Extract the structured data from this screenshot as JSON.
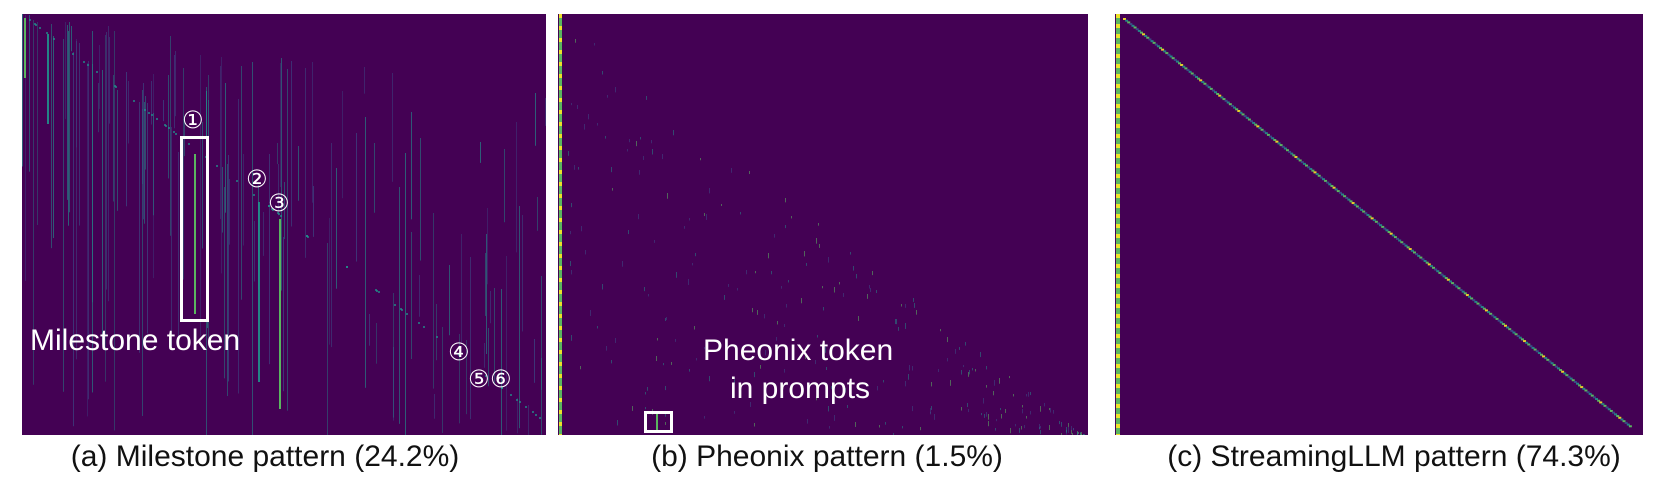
{
  "panels": [
    {
      "caption": "(a) Milestone pattern (24.2%)",
      "annotation": "Milestone token",
      "markers": [
        "①",
        "②",
        "③",
        "④",
        "⑤",
        "⑥"
      ]
    },
    {
      "caption": "(b) Pheonix pattern (1.5%)",
      "annotation_line1": "Pheonix token",
      "annotation_line2": "in prompts"
    },
    {
      "caption": "(c) StreamingLLM pattern (74.3%)"
    }
  ],
  "colors": {
    "background": "#440154",
    "low": "#3b528b",
    "mid": "#21918c",
    "high": "#5ec962",
    "peak": "#fde725",
    "annotation": "#ffffff"
  }
}
